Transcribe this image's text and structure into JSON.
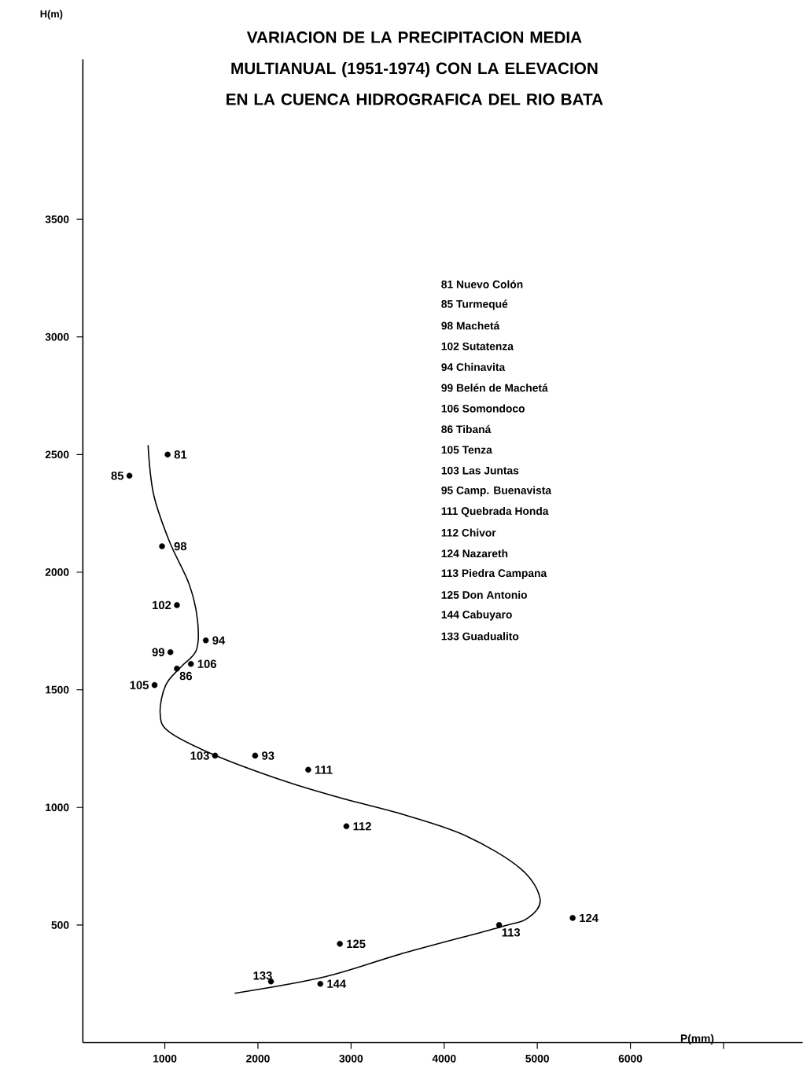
{
  "chart_data": {
    "type": "scatter",
    "title": "VARIACION DE LA PRECIPITACION MEDIA MULTIANUAL (1951-1974) CON LA ELEVACION EN LA CUENCA HIDROGRAFICA DEL RIO BATA",
    "xlabel": "P(mm)",
    "ylabel": "H(m)",
    "xlim": [
      120,
      7850
    ],
    "ylim": [
      0,
      4180
    ],
    "xticks": [
      1000,
      2000,
      3000,
      4000,
      5000,
      6000,
      {
        "value": 7000,
        "label": null
      }
    ],
    "yticks": [
      500,
      1000,
      1500,
      2000,
      2500,
      3000,
      3500
    ],
    "grid": false,
    "series": [
      {
        "marker": "circle",
        "color": "#000000",
        "x": [
          1030,
          620,
          970,
          1130,
          1440,
          1060,
          1280,
          1130,
          890,
          1540,
          1970,
          2540,
          2950,
          5380,
          4590,
          2880,
          2140,
          2670
        ],
        "values": [
          2500,
          2410,
          2110,
          1860,
          1710,
          1660,
          1610,
          1590,
          1520,
          1220,
          1220,
          1160,
          920,
          530,
          500,
          420,
          260,
          250
        ]
      },
      {
        "type": "line",
        "color": "#000000",
        "x": [
          820,
          880,
          1050,
          1260,
          1350,
          1340,
          1180,
          1010,
          950,
          1050,
          1550,
          2300,
          2890,
          3560,
          4230,
          4820,
          5030,
          4900,
          4590,
          3560,
          2720,
          1750
        ],
        "values": [
          2540,
          2330,
          2130,
          1950,
          1800,
          1670,
          1600,
          1520,
          1400,
          1320,
          1220,
          1110,
          1040,
          970,
          880,
          740,
          610,
          530,
          490,
          380,
          280,
          210
        ]
      }
    ],
    "annotations": [
      {
        "text": "81",
        "x": 1030,
        "y": 2500
      },
      {
        "text": "85",
        "x": 620,
        "y": 2410
      },
      {
        "text": "98",
        "x": 970,
        "y": 2110
      },
      {
        "text": "102",
        "x": 1130,
        "y": 1860
      },
      {
        "text": "94",
        "x": 1440,
        "y": 1710
      },
      {
        "text": "99",
        "x": 1060,
        "y": 1660
      },
      {
        "text": "106",
        "x": 1280,
        "y": 1610
      },
      {
        "text": "86",
        "x": 1130,
        "y": 1590
      },
      {
        "text": "105",
        "x": 890,
        "y": 1520
      },
      {
        "text": "103",
        "x": 1540,
        "y": 1220
      },
      {
        "text": "93",
        "x": 1970,
        "y": 1220
      },
      {
        "text": "111",
        "x": 2540,
        "y": 1160
      },
      {
        "text": "112",
        "x": 2950,
        "y": 920
      },
      {
        "text": "124",
        "x": 5380,
        "y": 530
      },
      {
        "text": "113",
        "x": 4590,
        "y": 500
      },
      {
        "text": "125",
        "x": 2880,
        "y": 420
      },
      {
        "text": "133",
        "x": 2140,
        "y": 260
      },
      {
        "text": "144",
        "x": 2670,
        "y": 250
      },
      "81 Nuevo Colón",
      "85 Turmequé",
      "98 Machetá",
      "102 Sutatenza",
      "94 Chinavita",
      "99 Belén de Machetá",
      "106 Somondoco",
      "86 Tibaná",
      "105 Tenza",
      "103 Las Juntas",
      "95 Camp. Buenavista",
      "111 Quebrada Honda",
      "112 Chivor",
      "124 Nazareth",
      "113 Piedra Campana",
      "125 Don Antonio",
      "144 Cabuyaro",
      "133 Guadualito"
    ]
  }
}
